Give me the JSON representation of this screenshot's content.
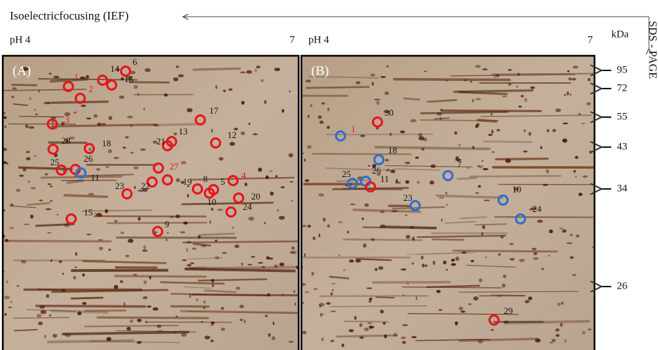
{
  "header": {
    "ief": "Isoelectricfocusing (IEF)",
    "sds": "SDS - PAGE",
    "kda": "kDa"
  },
  "markers": [
    "95",
    "72",
    "55",
    "43",
    "34",
    "26"
  ],
  "panels": [
    {
      "label": "(A)",
      "ph_left": "pH 4",
      "ph_right": "7",
      "spots": [
        {
          "label": "6",
          "ring": "#e8141c",
          "text": "#111"
        },
        {
          "label": "14",
          "ring": "#e8141c",
          "text": "#111"
        },
        {
          "label": "16",
          "ring": "#e8141c",
          "text": "#111"
        },
        {
          "label": "1",
          "ring": "#e8141c",
          "text": "#e8141c"
        },
        {
          "label": "2",
          "ring": "#e8141c",
          "text": "#e8141c"
        },
        {
          "label": "3",
          "ring": "#e8141c",
          "text": "#e8141c"
        },
        {
          "label": "17",
          "ring": "#e8141c",
          "text": "#111"
        },
        {
          "label": "28",
          "ring": "#e8141c",
          "text": "#111"
        },
        {
          "label": "18",
          "ring": "#e8141c",
          "text": "#111"
        },
        {
          "label": "21",
          "ring": "#e8141c",
          "text": "#111"
        },
        {
          "label": "13",
          "ring": "#e8141c",
          "text": "#111"
        },
        {
          "label": "12",
          "ring": "#e8141c",
          "text": "#111"
        },
        {
          "label": "25",
          "ring": "#e8141c",
          "text": "#111"
        },
        {
          "label": "26",
          "ring": "#e8141c",
          "text": "#111"
        },
        {
          "label": "11",
          "ring": "#2a6fd0",
          "text": "#111"
        },
        {
          "label": "27",
          "ring": "#e8141c",
          "text": "#e8141c"
        },
        {
          "label": "4",
          "ring": "#e8141c",
          "text": "#e8141c"
        },
        {
          "label": "22",
          "ring": "#e8141c",
          "text": "#111"
        },
        {
          "label": "19",
          "ring": "#e8141c",
          "text": "#111"
        },
        {
          "label": "23",
          "ring": "#e8141c",
          "text": "#111"
        },
        {
          "label": "8",
          "ring": "#e8141c",
          "text": "#111"
        },
        {
          "label": "5",
          "ring": "#e8141c",
          "text": "#111"
        },
        {
          "label": "10",
          "ring": "#e8141c",
          "text": "#111"
        },
        {
          "label": "20",
          "ring": "#e8141c",
          "text": "#111"
        },
        {
          "label": "24",
          "ring": "#e8141c",
          "text": "#111"
        },
        {
          "label": "15",
          "ring": "#e8141c",
          "text": "#111"
        },
        {
          "label": "9",
          "ring": "#e8141c",
          "text": "#111"
        }
      ]
    },
    {
      "label": "(B)",
      "ph_left": "pH 4",
      "ph_right": "7",
      "spots": [
        {
          "label": "30",
          "ring": "#e8141c",
          "text": "#111"
        },
        {
          "label": "1",
          "ring": "#2a6fd0",
          "text": "#e8141c"
        },
        {
          "label": "18",
          "ring": "#2a6fd0",
          "text": "#111"
        },
        {
          "label": "7",
          "ring": "#2a6fd0",
          "text": "#111"
        },
        {
          "label": "25",
          "ring": "#2a6fd0",
          "text": "#111"
        },
        {
          "label": "26",
          "ring": "#2a6fd0",
          "text": "#111"
        },
        {
          "label": "11",
          "ring": "#e8141c",
          "text": "#111"
        },
        {
          "label": "23",
          "ring": "#2a6fd0",
          "text": "#111"
        },
        {
          "label": "10",
          "ring": "#2a6fd0",
          "text": "#111"
        },
        {
          "label": "24",
          "ring": "#2a6fd0",
          "text": "#111"
        },
        {
          "label": "29",
          "ring": "#e8141c",
          "text": "#111"
        }
      ]
    }
  ]
}
